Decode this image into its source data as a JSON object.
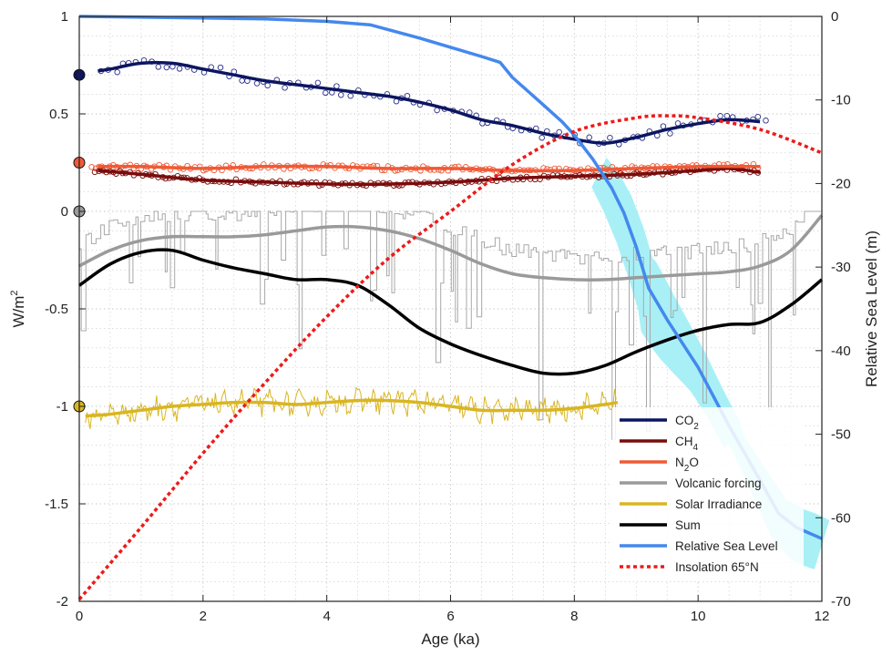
{
  "chart_data": {
    "type": "line",
    "xlabel": "Age (ka)",
    "ylabel_left": {
      "base": "W/m",
      "sup": "2"
    },
    "ylabel_right": "Relative Sea Level (m)",
    "xlim": [
      0,
      12
    ],
    "ylim_left": [
      -2,
      1
    ],
    "ylim_right": [
      -70,
      0
    ],
    "x_ticks": [
      0,
      2,
      4,
      6,
      8,
      10,
      12
    ],
    "x_tick_labels": [
      "0",
      "2",
      "4",
      "6",
      "8",
      "10",
      "12"
    ],
    "y_left_ticks": [
      -2,
      -1.5,
      -1,
      -0.5,
      0,
      0.5,
      1
    ],
    "y_left_tick_labels": [
      "-2",
      "-1.5",
      "-1",
      "-0.5",
      "0",
      "0.5",
      "1"
    ],
    "y_right_ticks": [
      -70,
      -60,
      -50,
      -40,
      -30,
      -20,
      -10,
      0
    ],
    "y_right_tick_labels": [
      "-70",
      "-60",
      "-50",
      "-40",
      "-30",
      "-20",
      "-10",
      "0"
    ],
    "grid": "dotted",
    "legend_position": "bottom-right",
    "colors": {
      "co2": "#0c1560",
      "co2_points": "#2a2f8a",
      "ch4": "#7a0c0c",
      "n2o": "#f05a36",
      "volcanic": "#9a9a9a",
      "volcanic_raw": "#a8a8a8",
      "solar": "#d9b521",
      "sum": "#000000",
      "sea_level": "#4488ee",
      "sea_level_band": "#9eeef5",
      "insolation": "#ee1a1a"
    },
    "legend": [
      {
        "key": "co2",
        "label_base": "CO",
        "label_sub": "2",
        "style": "solid"
      },
      {
        "key": "ch4",
        "label_base": "CH",
        "label_sub": "4",
        "style": "solid"
      },
      {
        "key": "n2o",
        "label_base": "N",
        "label_sub": "2",
        "label_tail": "O",
        "style": "solid"
      },
      {
        "key": "volcanic",
        "label_base": "Volcanic forcing",
        "style": "solid"
      },
      {
        "key": "solar",
        "label_base": "Solar Irradiance",
        "style": "solid"
      },
      {
        "key": "sum",
        "label_base": "Sum",
        "style": "solid"
      },
      {
        "key": "sea_level",
        "label_base": "Relative Sea Level",
        "style": "solid"
      },
      {
        "key": "insolation",
        "label_base": "Insolation 65°N",
        "style": "dotted"
      }
    ],
    "markers": [
      {
        "key": "co2",
        "y": 0.7
      },
      {
        "key": "n2o",
        "y": 0.25
      },
      {
        "key": "volcanic",
        "y": 0.0
      },
      {
        "key": "solar",
        "y": -1.0
      }
    ],
    "series": [
      {
        "key": "co2",
        "axis": "left",
        "x": [
          0.3,
          0.5,
          1.0,
          1.5,
          2.0,
          2.5,
          3.0,
          3.5,
          4.0,
          4.5,
          5.0,
          5.5,
          6.0,
          6.5,
          7.0,
          7.5,
          8.0,
          8.5,
          9.0,
          9.5,
          10.0,
          10.5,
          11.0
        ],
        "y": [
          0.72,
          0.73,
          0.76,
          0.76,
          0.73,
          0.7,
          0.67,
          0.65,
          0.63,
          0.61,
          0.59,
          0.56,
          0.52,
          0.47,
          0.44,
          0.4,
          0.37,
          0.35,
          0.38,
          0.42,
          0.45,
          0.47,
          0.46
        ]
      },
      {
        "key": "ch4",
        "axis": "left",
        "x": [
          0.3,
          1.0,
          2.0,
          3.0,
          4.0,
          5.0,
          6.0,
          7.0,
          8.0,
          9.0,
          10.0,
          10.5,
          11.0
        ],
        "y": [
          0.21,
          0.19,
          0.16,
          0.15,
          0.14,
          0.14,
          0.15,
          0.17,
          0.18,
          0.19,
          0.21,
          0.22,
          0.2
        ]
      },
      {
        "key": "n2o",
        "axis": "left",
        "x": [
          0.3,
          1.0,
          2.0,
          3.0,
          4.0,
          5.0,
          6.0,
          7.0,
          8.0,
          9.0,
          10.0,
          11.0
        ],
        "y": [
          0.23,
          0.23,
          0.22,
          0.23,
          0.23,
          0.22,
          0.22,
          0.21,
          0.21,
          0.22,
          0.23,
          0.23
        ]
      },
      {
        "key": "volcanic",
        "axis": "left",
        "x": [
          0.0,
          0.5,
          1.0,
          1.5,
          2.0,
          2.5,
          3.0,
          3.5,
          4.0,
          4.5,
          5.0,
          5.5,
          6.0,
          6.5,
          7.0,
          7.5,
          8.0,
          8.5,
          9.0,
          9.5,
          10.0,
          10.5,
          11.0,
          11.5,
          12.0
        ],
        "y": [
          -0.28,
          -0.2,
          -0.15,
          -0.13,
          -0.13,
          -0.13,
          -0.12,
          -0.1,
          -0.08,
          -0.08,
          -0.1,
          -0.14,
          -0.2,
          -0.27,
          -0.32,
          -0.34,
          -0.35,
          -0.35,
          -0.34,
          -0.33,
          -0.32,
          -0.31,
          -0.28,
          -0.2,
          -0.02
        ]
      },
      {
        "key": "solar",
        "axis": "left",
        "x": [
          0.1,
          0.5,
          1.0,
          1.5,
          2.0,
          2.5,
          3.0,
          3.5,
          4.0,
          4.5,
          5.0,
          5.5,
          6.0,
          6.5,
          7.0,
          7.5,
          8.0,
          8.5,
          8.7
        ],
        "y": [
          -1.05,
          -1.04,
          -1.02,
          -1.0,
          -0.99,
          -0.98,
          -0.98,
          -0.99,
          -0.98,
          -0.97,
          -0.97,
          -0.98,
          -1.0,
          -1.02,
          -1.02,
          -1.02,
          -1.01,
          -0.99,
          -0.98
        ]
      },
      {
        "key": "sum",
        "axis": "left",
        "x": [
          0.0,
          0.5,
          1.0,
          1.5,
          2.0,
          2.5,
          3.0,
          3.5,
          4.0,
          4.5,
          5.0,
          5.5,
          6.0,
          6.5,
          7.0,
          7.5,
          8.0,
          8.5,
          9.0,
          9.5,
          10.0,
          10.5,
          11.0,
          11.5,
          12.0
        ],
        "y": [
          -0.38,
          -0.27,
          -0.21,
          -0.2,
          -0.25,
          -0.29,
          -0.32,
          -0.35,
          -0.35,
          -0.38,
          -0.48,
          -0.6,
          -0.68,
          -0.74,
          -0.79,
          -0.83,
          -0.83,
          -0.79,
          -0.72,
          -0.66,
          -0.61,
          -0.58,
          -0.57,
          -0.48,
          -0.35
        ]
      },
      {
        "key": "sea_level",
        "axis": "right",
        "x": [
          0.0,
          1.0,
          2.0,
          3.0,
          4.0,
          4.7,
          5.5,
          6.0,
          6.5,
          6.8,
          7.0,
          7.5,
          7.8,
          8.0,
          8.3,
          8.6,
          8.8,
          9.0,
          9.2,
          9.5,
          10.0,
          10.5,
          11.0,
          11.3,
          11.6,
          12.0
        ],
        "y": [
          0.0,
          -0.1,
          -0.2,
          -0.3,
          -0.6,
          -1.0,
          -2.6,
          -3.7,
          -4.8,
          -5.5,
          -7.3,
          -10.6,
          -12.6,
          -14.2,
          -17.1,
          -20.5,
          -23.5,
          -27.6,
          -32.5,
          -36.3,
          -42.0,
          -49.0,
          -55.5,
          -59.5,
          -61.2,
          -62.5
        ]
      },
      {
        "key": "insolation",
        "axis": "left",
        "x": [
          0.0,
          1.0,
          2.0,
          3.0,
          4.0,
          5.0,
          6.0,
          7.0,
          8.0,
          9.0,
          9.5,
          10.0,
          11.0,
          12.0
        ],
        "y": [
          -1.99,
          -1.62,
          -1.24,
          -0.88,
          -0.54,
          -0.24,
          0.0,
          0.24,
          0.41,
          0.48,
          0.49,
          0.48,
          0.42,
          0.3
        ]
      }
    ]
  }
}
